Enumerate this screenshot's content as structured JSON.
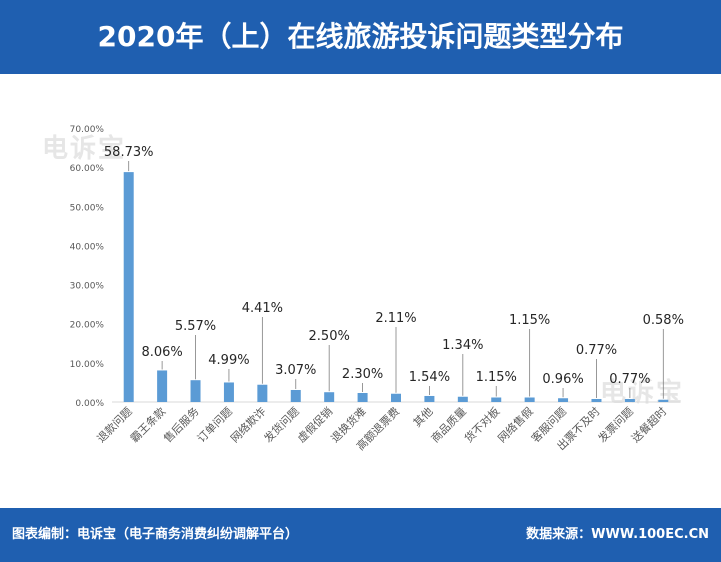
{
  "header": {
    "title": "2020年（上）在线旅游投诉问题类型分布"
  },
  "footer": {
    "left": "图表编制：电诉宝（电子商务消费纠纷调解平台）",
    "right": "数据来源：WWW.100EC.CN"
  },
  "watermark": {
    "text": "电诉宝"
  },
  "colors": {
    "header_bg": "#1f5fb0",
    "bar": "#5b9bd5",
    "axis_text": "#595959",
    "grid": "#d9d9d9"
  },
  "chart_data": {
    "type": "bar",
    "title": "2020年（上）在线旅游投诉问题类型分布",
    "categories": [
      "退款问题",
      "霸王条款",
      "售后服务",
      "订单问题",
      "网络欺诈",
      "发货问题",
      "虚假促销",
      "退换货难",
      "高额退票费",
      "其他",
      "商品质量",
      "货不对板",
      "网络售假",
      "客服问题",
      "出票不及时",
      "发票问题",
      "送餐超时"
    ],
    "values": [
      58.73,
      8.06,
      5.57,
      4.99,
      4.41,
      3.07,
      2.5,
      2.3,
      2.11,
      1.54,
      1.34,
      1.15,
      1.15,
      0.96,
      0.77,
      0.77,
      0.58
    ],
    "data_labels": [
      "58.73%",
      "8.06%",
      "5.57%",
      "4.99%",
      "4.41%",
      "3.07%",
      "2.50%",
      "2.30%",
      "2.11%",
      "1.54%",
      "1.34%",
      "1.15%",
      "1.15%",
      "0.96%",
      "0.77%",
      "0.77%",
      "0.58%"
    ],
    "y_ticks": [
      "0.00%",
      "10.00%",
      "20.00%",
      "30.00%",
      "40.00%",
      "50.00%",
      "60.00%",
      "70.00%"
    ],
    "ylim": [
      0,
      70
    ],
    "grid": false,
    "legend": "none"
  }
}
